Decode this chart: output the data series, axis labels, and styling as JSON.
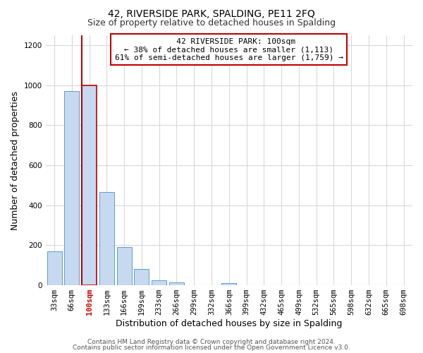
{
  "title": "42, RIVERSIDE PARK, SPALDING, PE11 2FQ",
  "subtitle": "Size of property relative to detached houses in Spalding",
  "xlabel": "Distribution of detached houses by size in Spalding",
  "ylabel": "Number of detached properties",
  "footnote1": "Contains HM Land Registry data © Crown copyright and database right 2024.",
  "footnote2": "Contains public sector information licensed under the Open Government Licence v3.0.",
  "bar_labels": [
    "33sqm",
    "66sqm",
    "100sqm",
    "133sqm",
    "166sqm",
    "199sqm",
    "233sqm",
    "266sqm",
    "299sqm",
    "332sqm",
    "366sqm",
    "399sqm",
    "432sqm",
    "465sqm",
    "499sqm",
    "532sqm",
    "565sqm",
    "598sqm",
    "632sqm",
    "665sqm",
    "698sqm"
  ],
  "bar_values": [
    170,
    970,
    1000,
    465,
    190,
    80,
    25,
    15,
    0,
    0,
    10,
    0,
    0,
    0,
    0,
    0,
    0,
    0,
    0,
    0,
    0
  ],
  "bar_color": "#c6d9f0",
  "bar_edge_color": "#5b9bd5",
  "highlight_index": 2,
  "highlight_line_color": "#c00000",
  "annotation_line1": "   42 RIVERSIDE PARK: 100sqm",
  "annotation_line2": "← 38% of detached houses are smaller (1,113)",
  "annotation_line3": "61% of semi-detached houses are larger (1,759) →",
  "ylim": [
    0,
    1250
  ],
  "yticks": [
    0,
    200,
    400,
    600,
    800,
    1000,
    1200
  ],
  "bg_color": "#ffffff",
  "grid_color": "#d9d9d9",
  "title_fontsize": 10,
  "subtitle_fontsize": 9,
  "axis_label_fontsize": 9,
  "tick_fontsize": 7.5,
  "annotation_fontsize": 8,
  "footnote_fontsize": 6.5
}
